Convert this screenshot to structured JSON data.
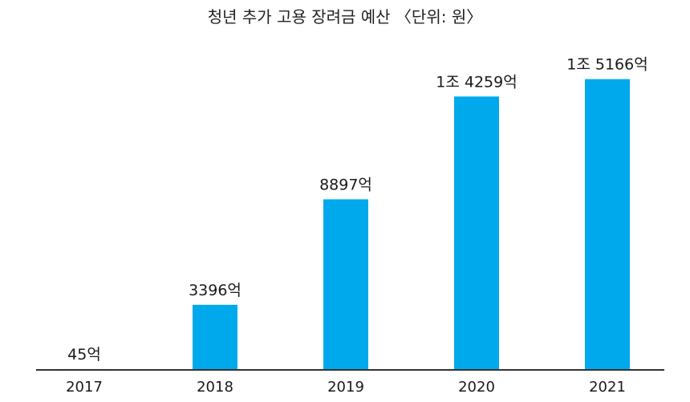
{
  "chart_data": {
    "type": "bar",
    "title": "청년 추가 고용 장려금 예산 〈단위: 원〉",
    "xlabel": "",
    "ylabel": "",
    "categories": [
      "2017",
      "2018",
      "2019",
      "2020",
      "2021"
    ],
    "values": [
      45,
      3396,
      8897,
      14259,
      15166
    ],
    "value_unit": "억",
    "data_labels": [
      "45억",
      "3396억",
      "8897억",
      "1조 4259억",
      "1조 5166억"
    ],
    "ylim": [
      0,
      17200
    ],
    "grid": false,
    "legend": "none",
    "bar_color": "#00a9ec",
    "axis_color": "#333333"
  }
}
